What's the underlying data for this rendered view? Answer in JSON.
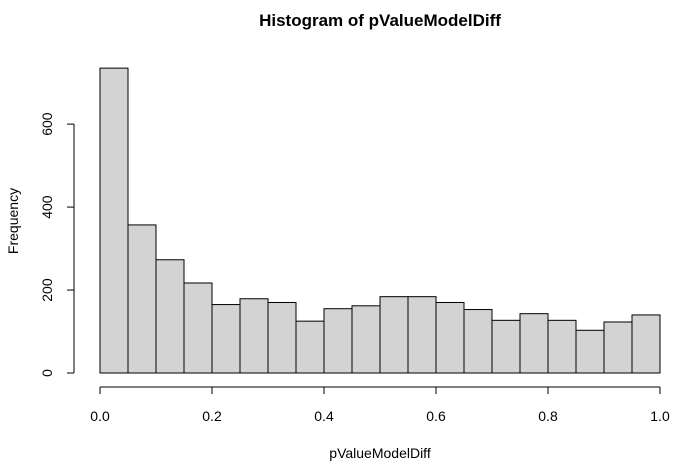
{
  "colors": {
    "bar_fill": "#d3d3d3",
    "bar_stroke": "#000000",
    "background": "#ffffff"
  },
  "chart_data": {
    "type": "bar",
    "title": "Histogram of pValueModelDiff",
    "xlabel": "pValueModelDiff",
    "ylabel": "Frequency",
    "xlim": [
      0,
      1
    ],
    "ylim": [
      0,
      740
    ],
    "grid": false,
    "bin_width": 0.05,
    "bin_edges": [
      0,
      0.05,
      0.1,
      0.15,
      0.2,
      0.25,
      0.3,
      0.35,
      0.4,
      0.45,
      0.5,
      0.55,
      0.6,
      0.65,
      0.7,
      0.75,
      0.8,
      0.85,
      0.9,
      0.95,
      1.0
    ],
    "values": [
      735,
      357,
      273,
      217,
      165,
      179,
      170,
      125,
      155,
      162,
      184,
      184,
      170,
      153,
      127,
      143,
      127,
      103,
      123,
      140
    ],
    "x_ticks": [
      0,
      0.2,
      0.4,
      0.6,
      0.8,
      1.0
    ],
    "x_tick_labels": [
      "0.0",
      "0.2",
      "0.4",
      "0.6",
      "0.8",
      "1.0"
    ],
    "y_ticks": [
      0,
      200,
      400,
      600
    ],
    "y_tick_labels": [
      "0",
      "200",
      "400",
      "600"
    ]
  }
}
